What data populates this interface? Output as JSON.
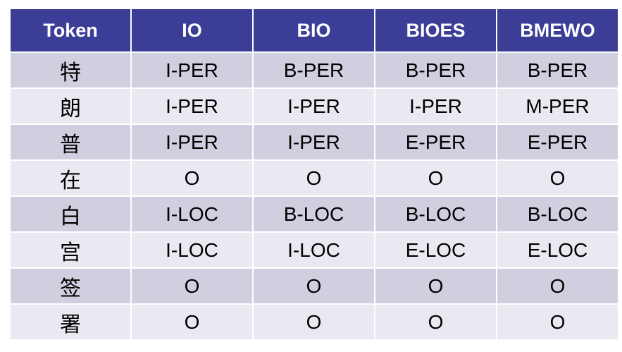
{
  "table": {
    "headers": [
      "Token",
      "IO",
      "BIO",
      "BIOES",
      "BMEWO"
    ],
    "rows": [
      [
        "特",
        "I-PER",
        "B-PER",
        "B-PER",
        "B-PER"
      ],
      [
        "朗",
        "I-PER",
        "I-PER",
        "I-PER",
        "M-PER"
      ],
      [
        "普",
        "I-PER",
        "I-PER",
        "E-PER",
        "E-PER"
      ],
      [
        "在",
        "O",
        "O",
        "O",
        "O"
      ],
      [
        "白",
        "I-LOC",
        "B-LOC",
        "B-LOC",
        "B-LOC"
      ],
      [
        "宫",
        "I-LOC",
        "I-LOC",
        "E-LOC",
        "E-LOC"
      ],
      [
        "签",
        "O",
        "O",
        "O",
        "O"
      ],
      [
        "署",
        "O",
        "O",
        "O",
        "O"
      ]
    ]
  },
  "colors": {
    "header_background": "#3b3d97",
    "header_text": "#ffffff",
    "row_odd_background": "#cfcfdf",
    "row_even_background": "#e9e9f1",
    "cell_text": "#000000"
  }
}
